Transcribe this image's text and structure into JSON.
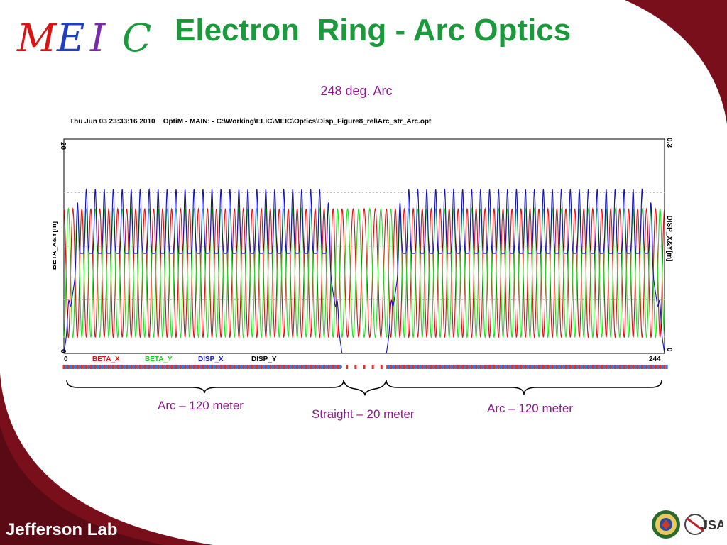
{
  "slide": {
    "logo_text": "MEIC",
    "title": "Electron  Ring - Arc Optics",
    "subtitle": "248 deg. Arc",
    "footer_lab": "Jefferson Lab",
    "footer_jsa": "JSA"
  },
  "colors": {
    "title": "#1a9a3a",
    "annotation": "#8a1a8a",
    "corner": "#7a0f1c",
    "beta_x": "#dd1111",
    "beta_y": "#22dd22",
    "disp_x": "#1111bb",
    "disp_y": "#000000"
  },
  "annotations": {
    "arc_left": "Arc – 120 meter",
    "straight": "Straight – 20 meter",
    "arc_right": "Arc – 120 meter"
  },
  "chart_data": {
    "type": "line",
    "header": "Thu Jun 03 23:33:16 2010    OptiM - MAIN: - C:\\Working\\ELIC\\MEIC\\Optics\\Disp_Figure8_rel\\Arc_str_Arc.opt",
    "ylabel_left": "BETA_X&Y[m]",
    "ylabel_right": "DISP_X&Y[m]",
    "xlim": [
      0,
      244
    ],
    "ylim_left": [
      0,
      20
    ],
    "ylim_right": [
      0,
      0.3
    ],
    "x_ticks": [
      "0",
      "244"
    ],
    "y_ticks_left": [
      "0",
      "20"
    ],
    "y_ticks_right": [
      "0",
      "0.3"
    ],
    "series": [
      {
        "name": "BETA_X",
        "axis": "left",
        "pattern": "periodic FODO",
        "min": 1.5,
        "max": 13.5,
        "cells_per_arc": 31,
        "straight_cells": 4
      },
      {
        "name": "BETA_Y",
        "axis": "left",
        "pattern": "periodic FODO (phase-shifted)",
        "min": 1.5,
        "max": 13.5,
        "cells_per_arc": 31,
        "straight_cells": 4
      },
      {
        "name": "DISP_X",
        "axis": "right",
        "pattern": "periodic in arcs, zero in straight",
        "min": 0.0,
        "max": 0.23,
        "arc_low": 0.14,
        "straight_value": 0.0
      },
      {
        "name": "DISP_Y",
        "axis": "right",
        "pattern": "zero",
        "min": 0.0,
        "max": 0.0
      }
    ],
    "segments": {
      "arc1": [
        0,
        113
      ],
      "straight": [
        113,
        131
      ],
      "arc2": [
        131,
        244
      ]
    }
  }
}
